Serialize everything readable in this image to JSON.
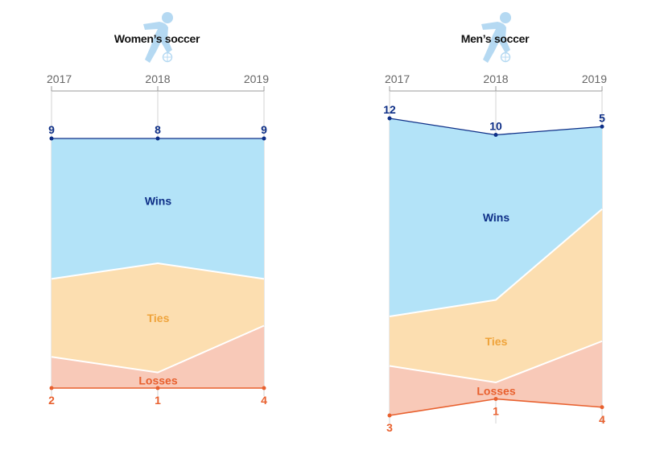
{
  "chart_data": [
    {
      "type": "area",
      "title": "Women’s soccer",
      "icon": "soccer-player-icon",
      "x": [
        "2017",
        "2018",
        "2019"
      ],
      "series": [
        {
          "name": "Wins",
          "values": [
            9,
            8,
            9
          ]
        },
        {
          "name": "Ties",
          "values": [
            5,
            7,
            3
          ]
        },
        {
          "name": "Losses",
          "values": [
            2,
            1,
            4
          ]
        }
      ]
    },
    {
      "type": "area",
      "title": "Men’s soccer",
      "icon": "soccer-player-icon",
      "x": [
        "2017",
        "2018",
        "2019"
      ],
      "series": [
        {
          "name": "Wins",
          "values": [
            12,
            10,
            5
          ]
        },
        {
          "name": "Ties",
          "values": [
            3,
            5,
            8
          ]
        },
        {
          "name": "Losses",
          "values": [
            3,
            1,
            4
          ]
        }
      ]
    }
  ],
  "colors": {
    "wins_fill": "#b3e3f8",
    "wins_text": "#0e2f87",
    "ties_fill": "#fcdeb0",
    "ties_text": "#efa33a",
    "losses_fill": "#f8c9b8",
    "losses_text": "#e8602e",
    "icon": "#b5d9f2",
    "axis": "#9a9a9a"
  }
}
